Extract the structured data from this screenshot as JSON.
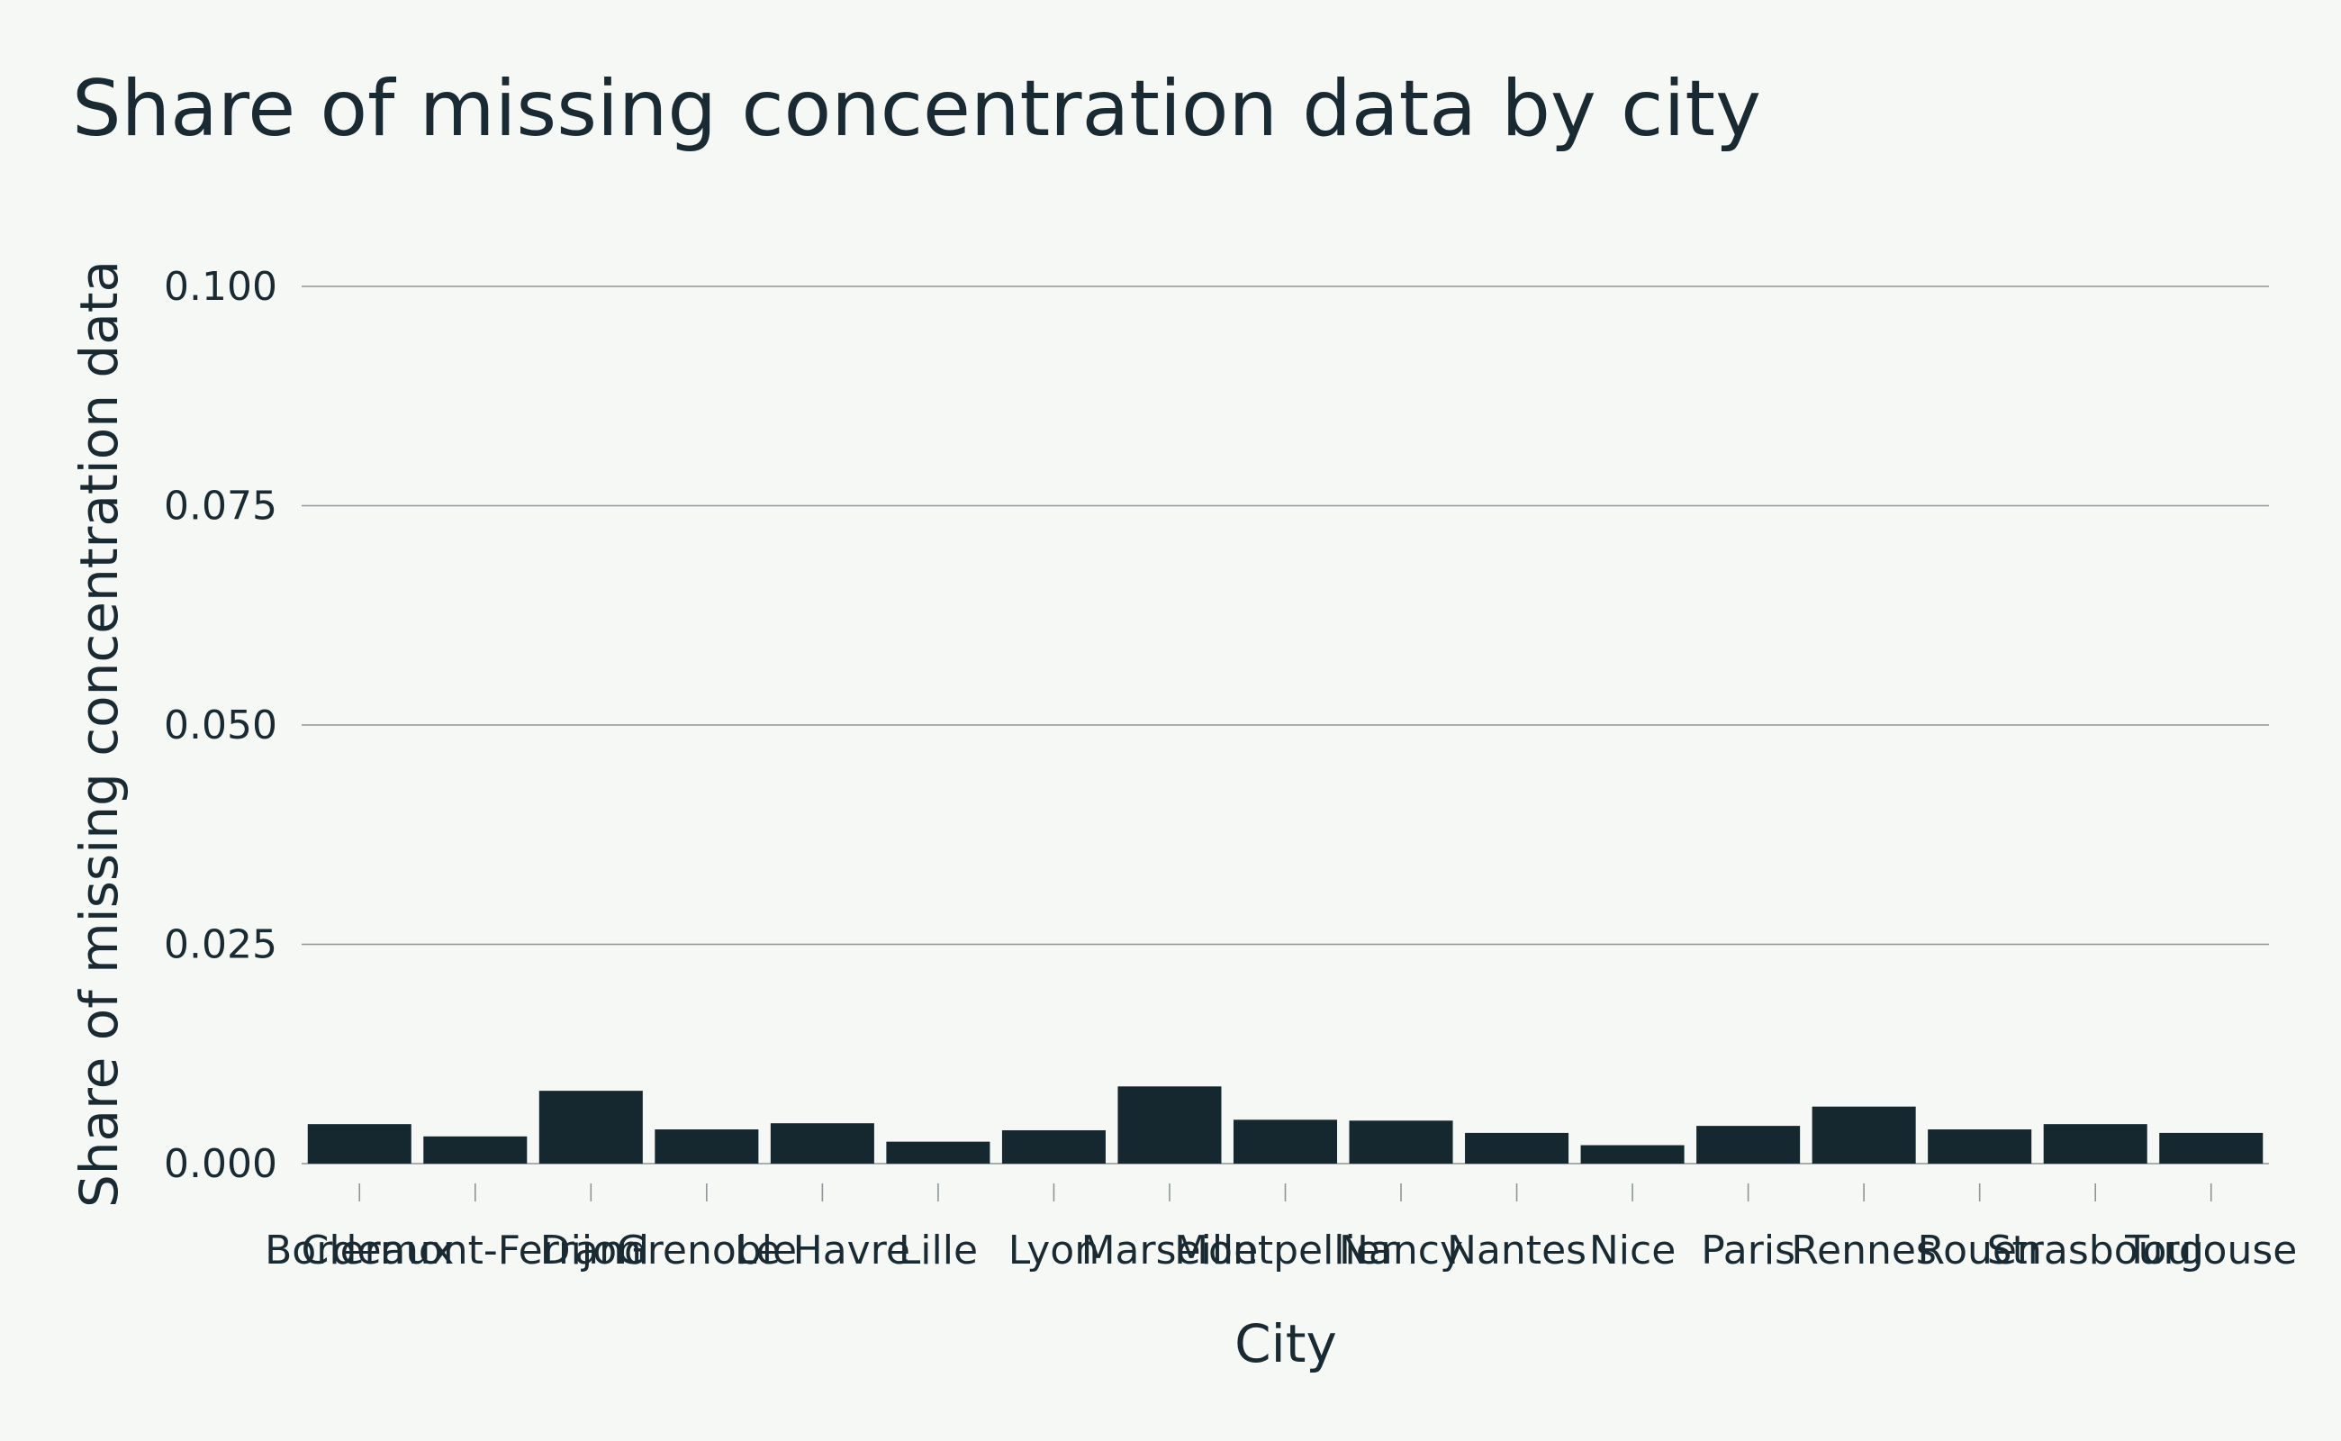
{
  "chart_data": {
    "type": "bar",
    "title": "Share of missing concentration data by city",
    "xlabel": "City",
    "ylabel": "Share of missing concentration data",
    "categories": [
      "Bordeaux",
      "Clermont-Ferrand",
      "Dijon",
      "Grenoble",
      "Le Havre",
      "Lille",
      "Lyon",
      "Marseille",
      "Montpellier",
      "Nancy",
      "Nantes",
      "Nice",
      "Paris",
      "Rennes",
      "Rouen",
      "Strasbourg",
      "Toulouse"
    ],
    "values": [
      0.0045,
      0.0031,
      0.0083,
      0.0039,
      0.0046,
      0.0025,
      0.0038,
      0.0088,
      0.005,
      0.0049,
      0.0035,
      0.0021,
      0.0043,
      0.0065,
      0.0039,
      0.0045,
      0.0035
    ],
    "ylim": [
      0,
      0.1
    ],
    "yticks": [
      0.0,
      0.025,
      0.05,
      0.075,
      0.1
    ],
    "ytick_labels": [
      "0.000",
      "0.025",
      "0.050",
      "0.075",
      "0.100"
    ],
    "grid": true,
    "bar_color": "#152830",
    "background": "#f6f8f5"
  }
}
